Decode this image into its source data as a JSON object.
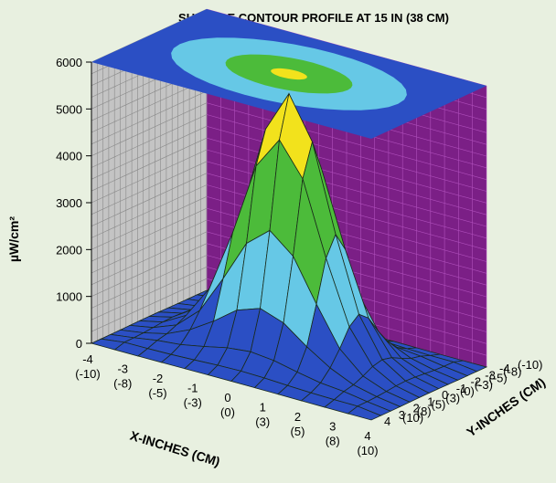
{
  "chart_data": {
    "type": "surface",
    "title": "SURFACE CONTOUR PROFILE AT 15 IN (38 CM)",
    "xlabel": "X-INCHES (CM)",
    "ylabel": "Y-INCHES (CM)",
    "zlabel": "µW/cm²",
    "z_ticks": [
      "0",
      "1000",
      "2000",
      "3000",
      "4000",
      "5000",
      "6000"
    ],
    "zlim": [
      0,
      6000
    ],
    "x_ticks": [
      {
        "inches": "-4",
        "cm": "(-10)"
      },
      {
        "inches": "-3",
        "cm": "(-8)"
      },
      {
        "inches": "-2",
        "cm": "(-5)"
      },
      {
        "inches": "-1",
        "cm": "(-3)"
      },
      {
        "inches": "0",
        "cm": "(0)"
      },
      {
        "inches": "1",
        "cm": "(3)"
      },
      {
        "inches": "2",
        "cm": "(5)"
      },
      {
        "inches": "3",
        "cm": "(8)"
      },
      {
        "inches": "4",
        "cm": "(10)"
      }
    ],
    "y_ticks": [
      {
        "inches": "-4",
        "cm": "(-10)"
      },
      {
        "inches": "-3",
        "cm": "(-8)"
      },
      {
        "inches": "-2",
        "cm": "(-5)"
      },
      {
        "inches": "-1",
        "cm": "(-3)"
      },
      {
        "inches": "0",
        "cm": "(0)"
      },
      {
        "inches": "1",
        "cm": "(3)"
      },
      {
        "inches": "2",
        "cm": "(5)"
      },
      {
        "inches": "3",
        "cm": "(8)"
      },
      {
        "inches": "4",
        "cm": "(10)"
      }
    ],
    "peak_value": 5200,
    "contour_bands": [
      {
        "min": 0,
        "max": 1000,
        "color": "#2b4fc4"
      },
      {
        "min": 1000,
        "max": 2000,
        "color": "#66c8e6"
      },
      {
        "min": 2000,
        "max": 4000,
        "color": "#4cbb3a"
      },
      {
        "min": 4000,
        "max": 6000,
        "color": "#f2e21c"
      }
    ],
    "colors": {
      "left_wall": "#c4c4c4",
      "back_wall": "#7b1f86",
      "floor": "#8f8f8f",
      "mesh": "#1a2a1a"
    }
  }
}
